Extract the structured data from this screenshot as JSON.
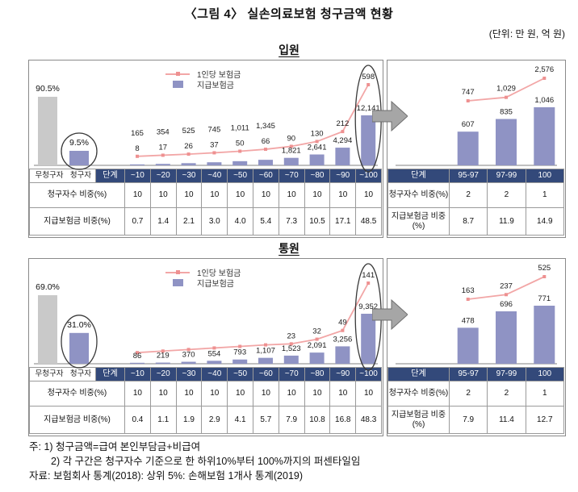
{
  "title": "〈그림 4〉 실손의료보험 청구금액 현황",
  "unit_note": "(단위: 만 원, 억 원)",
  "legend": {
    "line": "1인당 보험금",
    "bar": "지급보험금"
  },
  "sections": [
    {
      "heading": "입원",
      "table": {
        "header": [
          "단계",
          "~10",
          "~20",
          "~30",
          "~40",
          "~50",
          "~60",
          "~70",
          "~80",
          "~90",
          "~100"
        ],
        "rows": [
          {
            "label": "청구자수 비중(%)",
            "values": [
              "10",
              "10",
              "10",
              "10",
              "10",
              "10",
              "10",
              "10",
              "10",
              "10"
            ]
          },
          {
            "label": "지급보험금 비중(%)",
            "values": [
              "0.7",
              "1.4",
              "2.1",
              "3.0",
              "4.0",
              "5.4",
              "7.3",
              "10.5",
              "17.1",
              "48.5"
            ]
          }
        ]
      },
      "top_table": {
        "header": [
          "단계",
          "95-97",
          "97-99",
          "100"
        ],
        "rows": [
          {
            "label": "청구자수 비중(%)",
            "values": [
              "2",
              "2",
              "1"
            ]
          },
          {
            "label": "지급보험금 비중(%)",
            "values": [
              "8.7",
              "11.9",
              "14.9"
            ]
          }
        ]
      }
    },
    {
      "heading": "통원",
      "table": {
        "header": [
          "단계",
          "~10",
          "~20",
          "~30",
          "~40",
          "~50",
          "~60",
          "~70",
          "~80",
          "~90",
          "~100"
        ],
        "rows": [
          {
            "label": "청구자수 비중(%)",
            "values": [
              "10",
              "10",
              "10",
              "10",
              "10",
              "10",
              "10",
              "10",
              "10",
              "10"
            ]
          },
          {
            "label": "지급보험금 비중(%)",
            "values": [
              "0.4",
              "1.1",
              "1.9",
              "2.9",
              "4.1",
              "5.7",
              "7.9",
              "10.8",
              "16.8",
              "48.3"
            ]
          }
        ]
      },
      "top_table": {
        "header": [
          "단계",
          "95-97",
          "97-99",
          "100"
        ],
        "rows": [
          {
            "label": "청구자수 비중(%)",
            "values": [
              "2",
              "2",
              "1"
            ]
          },
          {
            "label": "지급보험금 비중(%)",
            "values": [
              "7.9",
              "11.4",
              "12.7"
            ]
          }
        ]
      }
    }
  ],
  "chart_data": [
    {
      "id": "inpatient-claimant-share",
      "type": "bar",
      "categories": [
        "무청구자",
        "청구자"
      ],
      "values": [
        90.5,
        9.5
      ],
      "labels": [
        "90.5%",
        "9.5%"
      ],
      "highlight_index": 1
    },
    {
      "id": "inpatient-by-decile",
      "type": "bar+line",
      "categories": [
        "~10",
        "~20",
        "~30",
        "~40",
        "~50",
        "~60",
        "~70",
        "~80",
        "~90",
        "~100"
      ],
      "series": [
        {
          "name": "지급보험금",
          "type": "bar",
          "values": [
            165,
            354,
            525,
            745,
            1011,
            1345,
            1821,
            2641,
            4294,
            12141
          ],
          "labels": [
            "165",
            "354",
            "525",
            "745",
            "1,011",
            "1,345",
            "1,821",
            "2,641",
            "4,294",
            "12,141"
          ]
        },
        {
          "name": "1인당 보험금",
          "type": "line",
          "values": [
            8,
            17,
            26,
            37,
            50,
            66,
            90,
            130,
            212,
            598
          ],
          "labels": [
            "8",
            "17",
            "26",
            "37",
            "50",
            "66",
            "90",
            "130",
            "212",
            "598"
          ]
        }
      ],
      "highlight_index": 9
    },
    {
      "id": "inpatient-top-percentiles",
      "type": "bar+line",
      "categories": [
        "95-97",
        "97-99",
        "100"
      ],
      "series": [
        {
          "name": "지급보험금",
          "type": "bar",
          "values": [
            607,
            835,
            1046
          ],
          "labels": [
            "607",
            "835",
            "1,046"
          ]
        },
        {
          "name": "1인당 보험금",
          "type": "line",
          "values": [
            747,
            1029,
            2576
          ],
          "labels": [
            "747",
            "1,029",
            "2,576"
          ]
        }
      ]
    },
    {
      "id": "outpatient-claimant-share",
      "type": "bar",
      "categories": [
        "무청구자",
        "청구자"
      ],
      "values": [
        69.0,
        31.0
      ],
      "labels": [
        "69.0%",
        "31.0%"
      ],
      "highlight_index": 1
    },
    {
      "id": "outpatient-by-decile",
      "type": "bar+line",
      "categories": [
        "~10",
        "~20",
        "~30",
        "~40",
        "~50",
        "~60",
        "~70",
        "~80",
        "~90",
        "~100"
      ],
      "series": [
        {
          "name": "지급보험금",
          "type": "bar",
          "values": [
            86,
            219,
            370,
            554,
            793,
            1107,
            1523,
            2091,
            3256,
            9352
          ],
          "labels": [
            "86",
            "219",
            "370",
            "554",
            "793",
            "1,107",
            "1,523",
            "2,091",
            "3,256",
            "9,352"
          ]
        },
        {
          "name": "1인당 보험금",
          "type": "line",
          "values": [
            6,
            9,
            12,
            15,
            18,
            21,
            23,
            32,
            49,
            141
          ],
          "labels": [
            "",
            "",
            "",
            "",
            "",
            "",
            "23",
            "32",
            "49",
            "141"
          ]
        }
      ],
      "highlight_index": 9
    },
    {
      "id": "outpatient-top-percentiles",
      "type": "bar+line",
      "categories": [
        "95-97",
        "97-99",
        "100"
      ],
      "series": [
        {
          "name": "지급보험금",
          "type": "bar",
          "values": [
            478,
            696,
            771
          ],
          "labels": [
            "478",
            "696",
            "771"
          ]
        },
        {
          "name": "1인당 보험금",
          "type": "line",
          "values": [
            163,
            237,
            525
          ],
          "labels": [
            "163",
            "237",
            "525"
          ]
        }
      ]
    }
  ],
  "notes": [
    "주: 1) 청구금액=급여 본인부담금+비급여",
    "2) 각 구간은 청구자수 기준으로 한 하위10%부터 100%까지의 퍼센타일임",
    "자료: 보험회사 통계(2018): 상위 5%: 손해보험 1개사 통계(2019)"
  ]
}
